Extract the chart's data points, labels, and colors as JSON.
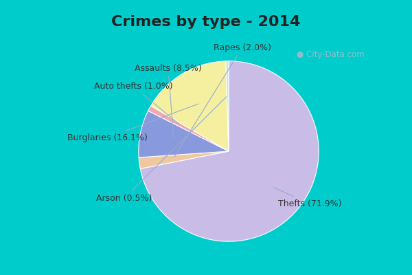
{
  "title": "Crimes by type - 2014",
  "slices": [
    {
      "label": "Thefts (71.9%)",
      "value": 71.9,
      "color": "#C9BDE8"
    },
    {
      "label": "Rapes (2.0%)",
      "value": 2.0,
      "color": "#F0C8A0"
    },
    {
      "label": "Assaults (8.5%)",
      "value": 8.5,
      "color": "#8899DD"
    },
    {
      "label": "Auto thefts (1.0%)",
      "value": 1.0,
      "color": "#F2A8B0"
    },
    {
      "label": "Burglaries (16.1%)",
      "value": 16.1,
      "color": "#F5F0A0"
    },
    {
      "label": "Arson (0.5%)",
      "value": 0.5,
      "color": "#C8E8D0"
    }
  ],
  "background_outer": "#00CCCC",
  "background_inner": "#CCE8D8",
  "title_fontsize": 16,
  "label_fontsize": 9,
  "watermark": "City-Data.com"
}
